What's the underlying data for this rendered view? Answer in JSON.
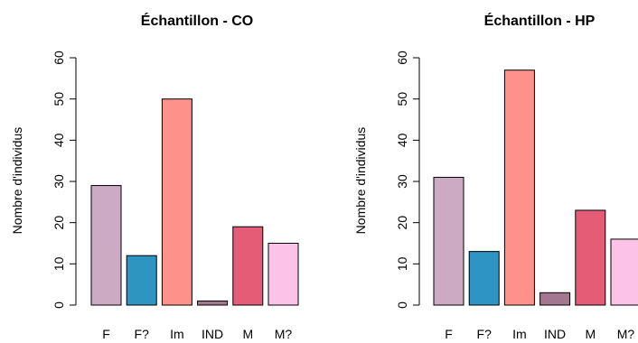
{
  "chart_data": [
    {
      "type": "bar",
      "title": "Échantillon - CO",
      "xlabel": "",
      "ylabel": "Nombre d'individus",
      "categories": [
        "F",
        "F?",
        "Im",
        "IND",
        "M",
        "M?"
      ],
      "values": [
        29,
        12,
        50,
        1,
        19,
        15
      ],
      "colors": [
        "#ccaac4",
        "#2e94c2",
        "#fe918a",
        "#a3788e",
        "#e55c76",
        "#fdc2e8"
      ],
      "ylim": [
        0,
        60
      ],
      "yticks": [
        "0",
        "10",
        "20",
        "30",
        "40",
        "50",
        "60"
      ],
      "grid": false,
      "legend": "none"
    },
    {
      "type": "bar",
      "title": "Échantillon - HP",
      "xlabel": "",
      "ylabel": "Nombre d'individus",
      "categories": [
        "F",
        "F?",
        "Im",
        "IND",
        "M",
        "M?"
      ],
      "values": [
        31,
        13,
        57,
        3,
        23,
        16
      ],
      "colors": [
        "#ccaac4",
        "#2e94c2",
        "#fe918a",
        "#a3788e",
        "#e55c76",
        "#fdc2e8"
      ],
      "ylim": [
        0,
        60
      ],
      "yticks": [
        "0",
        "10",
        "20",
        "30",
        "40",
        "50",
        "60"
      ],
      "grid": false,
      "legend": "none"
    }
  ]
}
